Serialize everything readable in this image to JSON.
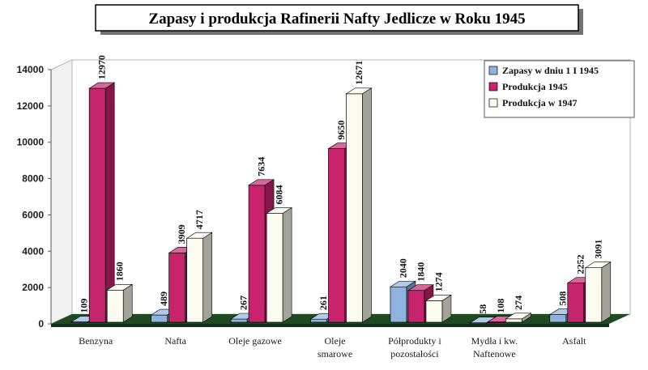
{
  "chart_data": {
    "type": "bar",
    "title": "Zapasy i produkcja Rafinerii Nafty Jedlicze w Roku 1945",
    "xlabel": "",
    "ylabel": "",
    "ylim": [
      0,
      14000
    ],
    "y_ticks": [
      "0",
      "2000",
      "4000",
      "6000",
      "8000",
      "10000",
      "12000",
      "14000"
    ],
    "grid": false,
    "legend_position": "top-right",
    "categories": [
      [
        "Benzyna"
      ],
      [
        "Nafta"
      ],
      [
        "Oleje gazowe"
      ],
      [
        "Oleje",
        "smarowe"
      ],
      [
        "Półprodukty i",
        "pozostałości"
      ],
      [
        "Mydła i kw.",
        "Naftenowe"
      ],
      [
        "Asfalt"
      ]
    ],
    "series": [
      {
        "name": "Zapasy w dniu 1 I 1945",
        "color": "#8fb3e0",
        "values": [
          109,
          489,
          267,
          261,
          2040,
          58,
          508
        ],
        "labels": [
          "109",
          "489",
          "267",
          "261",
          "2040",
          "58",
          "508"
        ]
      },
      {
        "name": "Produkcja 1945",
        "color": "#c8246e",
        "values": [
          12970,
          3909,
          7634,
          9650,
          1840,
          108,
          2252
        ],
        "labels": [
          "12970",
          "3909",
          "7634",
          "9650",
          "1840",
          "108",
          "2252"
        ]
      },
      {
        "name": "Produkcja w 1947",
        "color": "#fcfbef",
        "values": [
          1860,
          4717,
          6084,
          12671,
          1274,
          274,
          3091
        ],
        "labels": [
          "1860",
          "4717",
          "6084",
          "12671",
          "1274",
          "274",
          "3091"
        ]
      }
    ]
  }
}
